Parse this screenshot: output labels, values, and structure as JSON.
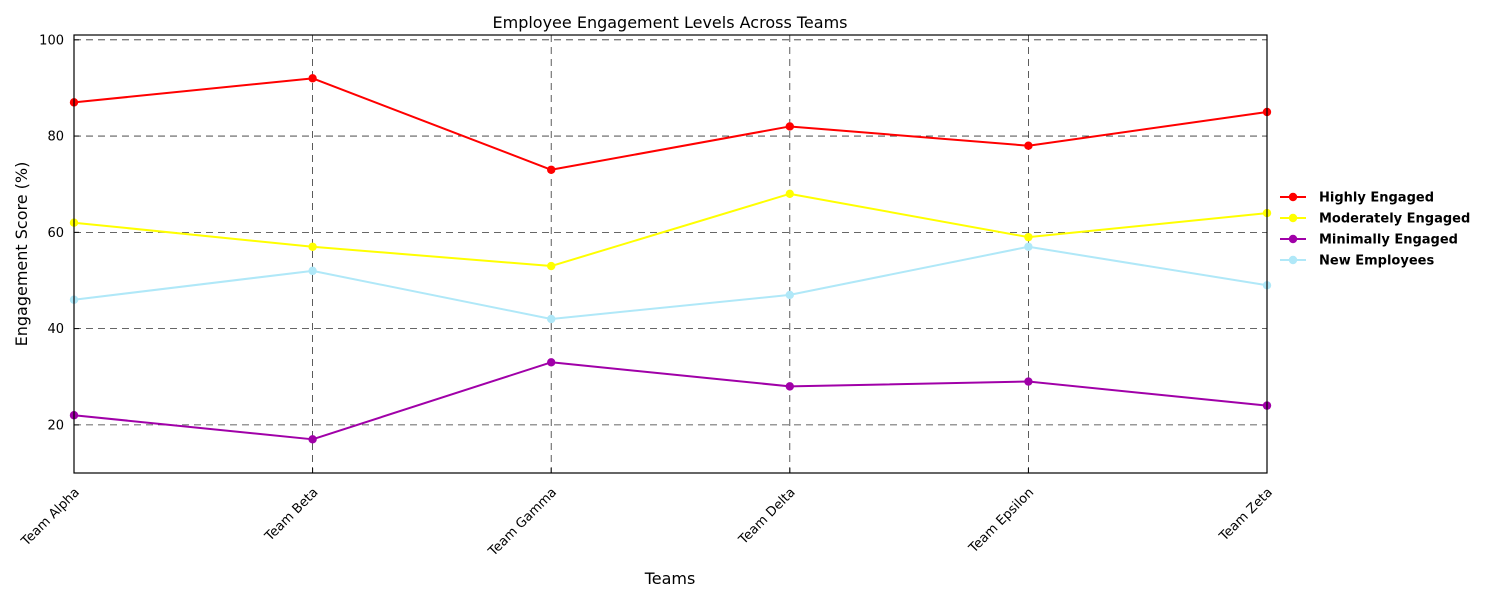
{
  "chart_data": {
    "type": "line",
    "title": "Employee Engagement Levels Across Teams",
    "xlabel": "Teams",
    "ylabel": "Engagement Score (%)",
    "categories": [
      "Team Alpha",
      "Team Beta",
      "Team Gamma",
      "Team Delta",
      "Team Epsilon",
      "Team Zeta"
    ],
    "ylim": [
      10,
      101
    ],
    "yticks": [
      20,
      40,
      60,
      80,
      100
    ],
    "grid": true,
    "legend_position": "right",
    "series": [
      {
        "name": "Highly Engaged",
        "color": "#ff0000",
        "values": [
          87,
          92,
          73,
          82,
          78,
          85
        ]
      },
      {
        "name": "Moderately Engaged",
        "color": "#ffff00",
        "values": [
          62,
          57,
          53,
          68,
          59,
          64
        ]
      },
      {
        "name": "Minimally Engaged",
        "color": "#a000a8",
        "values": [
          22,
          17,
          33,
          28,
          29,
          24
        ]
      },
      {
        "name": "New Employees",
        "color": "#b0e8f8",
        "values": [
          46,
          52,
          42,
          47,
          57,
          49
        ]
      }
    ]
  }
}
